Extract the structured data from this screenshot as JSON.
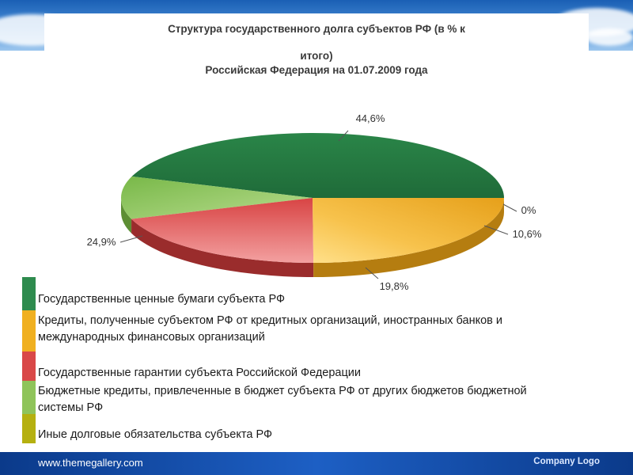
{
  "header": {
    "title_line1": "Структура государственного долга субъектов РФ (в % к",
    "title_line2": "итого)",
    "title_line3": "Российская Федерация на 01.07.2009  года"
  },
  "chart_data": {
    "type": "pie",
    "title": "Структура государственного долга субъектов РФ (в % к итого) Российская Федерация на 01.07.2009  года",
    "three_d": true,
    "slices": [
      {
        "name": "Государственные ценные бумаги субъекта РФ",
        "value": 44.6,
        "label": "44,6%",
        "color": "#2e8b4e"
      },
      {
        "name": "Иные долговые обязательства субъекта РФ",
        "value": 0.0,
        "label": "0%",
        "color": "#b5b010"
      },
      {
        "name": "Бюджетные кредиты, привлеченные в бюджет субъекта РФ от других бюджетов бюджетной системы РФ",
        "value": 10.6,
        "label": "10,6%",
        "color": "#8fc45a"
      },
      {
        "name": "Государственные гарантии субъекта Российской Федерации",
        "value": 19.8,
        "label": "19,8%",
        "color": "#d94848"
      },
      {
        "name": "Кредиты, полученные субъектом РФ от кредитных организаций, иностранных банков и международных финансовых организаций",
        "value": 24.9,
        "label": "24,9%",
        "color": "#f0b020"
      }
    ],
    "legend_placement": "bottom-left"
  },
  "legend": [
    {
      "label": "Государственные ценные бумаги субъекта РФ",
      "color": "#2e8b4e"
    },
    {
      "label": "Кредиты, полученные субъектом РФ от кредитных организаций, иностранных банков и международных финансовых организаций",
      "color": "#f0b020"
    },
    {
      "label": "Государственные гарантии субъекта Российской Федерации",
      "color": "#d94848"
    },
    {
      "label": "Бюджетные кредиты, привлеченные в бюджет субъекта РФ от других бюджетов бюджетной системы РФ",
      "color": "#8fc45a"
    },
    {
      "label": "Иные долговые обязательства субъекта РФ",
      "color": "#b5b010"
    }
  ],
  "footer": {
    "url": "www.themegallery.com",
    "logo": "Company Logo"
  }
}
